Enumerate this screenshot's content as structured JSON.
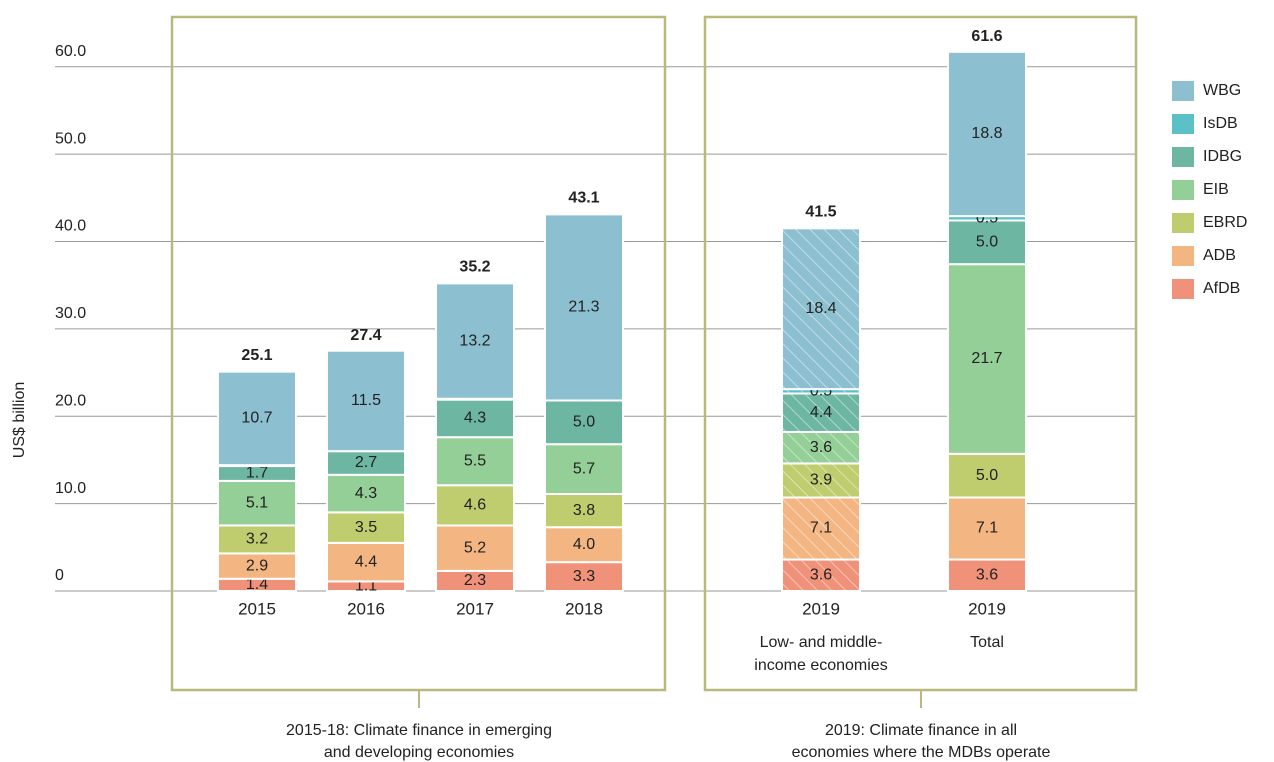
{
  "chart_data": {
    "type": "stacked_bar",
    "y_label": "US$ billion",
    "categories": [
      "2015",
      "2016",
      "2017",
      "2018",
      "2019",
      "2019"
    ],
    "category_sublabels": [
      null,
      null,
      null,
      null,
      [
        "Low- and middle-",
        "income economies"
      ],
      [
        "Total"
      ]
    ],
    "groups": [
      {
        "lines": [
          "2015-18: Climate finance in emerging",
          "and developing economies"
        ]
      },
      {
        "lines": [
          "2019: Climate finance in all",
          "economies where the MDBs operate"
        ]
      }
    ],
    "hatched": [
      false,
      false,
      false,
      false,
      true,
      false
    ],
    "series": [
      {
        "name": "AfDB",
        "color": "#f0917a",
        "values": [
          1.4,
          1.1,
          2.3,
          3.3,
          3.6,
          3.6
        ],
        "value_labels": [
          "1.4",
          "1.1",
          "2.3",
          "3.3",
          "3.6",
          "3.6"
        ]
      },
      {
        "name": "ADB",
        "color": "#f3b683",
        "values": [
          2.9,
          4.4,
          5.2,
          4.0,
          7.1,
          7.1
        ],
        "value_labels": [
          "2.9",
          "4.4",
          "5.2",
          "4.0",
          "7.1",
          "7.1"
        ]
      },
      {
        "name": "EBRD",
        "color": "#bfcd6e",
        "values": [
          3.2,
          3.5,
          4.6,
          3.8,
          3.9,
          5.0
        ],
        "value_labels": [
          "3.2",
          "3.5",
          "4.6",
          "3.8",
          "3.9",
          "5.0"
        ]
      },
      {
        "name": "EIB",
        "color": "#93cf97",
        "values": [
          5.1,
          4.3,
          5.5,
          5.7,
          3.6,
          21.7
        ],
        "value_labels": [
          "5.1",
          "4.3",
          "5.5",
          "5.7",
          "3.6",
          "21.7"
        ]
      },
      {
        "name": "IDBG",
        "color": "#6db6a1",
        "values": [
          1.7,
          2.7,
          4.3,
          5.0,
          4.4,
          5.0
        ],
        "value_labels": [
          "1.7",
          "2.7",
          "4.3",
          "5.0",
          "4.4",
          "5.0"
        ]
      },
      {
        "name": "IsDB",
        "color": "#5cc0c7",
        "values": [
          0.1,
          0,
          0.1,
          0,
          0.5,
          0.5
        ],
        "value_labels": [
          null,
          null,
          null,
          null,
          "0.5",
          "0.5"
        ]
      },
      {
        "name": "WBG",
        "color": "#8cc0d0",
        "values": [
          10.7,
          11.5,
          13.2,
          21.3,
          18.4,
          18.8
        ],
        "value_labels": [
          "10.7",
          "11.5",
          "13.2",
          "21.3",
          "18.4",
          "18.8"
        ]
      }
    ],
    "totals": [
      25.1,
      27.4,
      35.2,
      43.1,
      41.5,
      61.6
    ],
    "ylim": [
      0,
      65
    ],
    "yticks": [
      0,
      {
        "value": 10,
        "label": "10.0"
      },
      {
        "value": 20,
        "label": "20.0"
      },
      {
        "value": 30,
        "label": "30.0"
      },
      {
        "value": 40,
        "label": "40.0"
      },
      {
        "value": 50,
        "label": "50.0"
      },
      {
        "value": 60,
        "label": "60.0"
      }
    ],
    "grid": true,
    "legend": "right"
  }
}
